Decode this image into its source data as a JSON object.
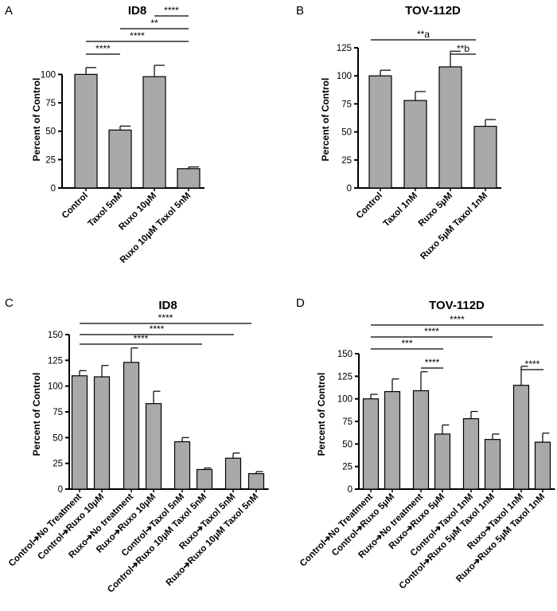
{
  "figure": {
    "panels": [
      {
        "id": "A",
        "letter": "A"
      },
      {
        "id": "B",
        "letter": "B"
      },
      {
        "id": "C",
        "letter": "C"
      },
      {
        "id": "D",
        "letter": "D"
      }
    ],
    "bar_color": "#a9a9a9",
    "ink_color": "#000000"
  },
  "chart_data": [
    {
      "panel": "A",
      "type": "bar",
      "title": "ID8",
      "ylabel": "Percent of Control",
      "xlabel": "",
      "ylim": [
        0,
        115
      ],
      "yticks": [
        0,
        25,
        50,
        75,
        100
      ],
      "categories": [
        "Control",
        "Taxol 5nM",
        "Ruxo 10μM",
        "Ruxo 10μM Taxol 5nM"
      ],
      "values": [
        100,
        51,
        98,
        17
      ],
      "errors": [
        6,
        3.5,
        10,
        1.5
      ],
      "significance": [
        {
          "from": 0,
          "to": 1,
          "label": "****"
        },
        {
          "from": 0,
          "to": 3,
          "label": "****"
        },
        {
          "from": 1,
          "to": 3,
          "label": "**"
        },
        {
          "from": 2,
          "to": 3,
          "label": "****"
        }
      ]
    },
    {
      "panel": "B",
      "type": "bar",
      "title": "TOV-112D",
      "ylabel": "Percent of Control",
      "xlabel": "",
      "ylim": [
        0,
        125
      ],
      "yticks": [
        0,
        25,
        50,
        75,
        100,
        125
      ],
      "categories": [
        "Control",
        "Taxol 1nM",
        "Ruxo 5μM",
        "Ruxo 5μM Taxol 1nM"
      ],
      "values": [
        100,
        78,
        108,
        55
      ],
      "errors": [
        5,
        8,
        14,
        6
      ],
      "significance": [
        {
          "from": 2,
          "to": 3,
          "label": "**b"
        },
        {
          "from": 0,
          "to": 3,
          "label": "**a"
        }
      ]
    },
    {
      "panel": "C",
      "type": "bar",
      "title": "ID8",
      "ylabel": "Percent of Control",
      "xlabel": "",
      "ylim": [
        0,
        150
      ],
      "yticks": [
        0,
        25,
        50,
        75,
        100,
        125,
        150
      ],
      "categories": [
        "Control➔No Treatment",
        "Control➔Ruxo 10μM",
        "Ruxo➔No treatment",
        "Ruxo➔Ruxo 10μM",
        "Control➔Taxol 5nM",
        "Control➔Ruxo 10μM Taxol 5nM",
        "Ruxo➔Taxol 5nM",
        "Ruxo➔Ruxo 10μM Taxol 5nM"
      ],
      "values": [
        110,
        109,
        123,
        83,
        46,
        19,
        30,
        15
      ],
      "errors": [
        5,
        11,
        14,
        12,
        4,
        1.5,
        5,
        2
      ],
      "significance": [
        {
          "from": 0,
          "to": 5,
          "label": "****"
        },
        {
          "from": 0,
          "to": 6,
          "label": "****"
        },
        {
          "from": 0,
          "to": 7,
          "label": "****"
        }
      ]
    },
    {
      "panel": "D",
      "type": "bar",
      "title": "TOV-112D",
      "ylabel": "Percent of Control",
      "xlabel": "",
      "ylim": [
        0,
        150
      ],
      "yticks": [
        0,
        25,
        50,
        75,
        100,
        125,
        150
      ],
      "categories": [
        "Control➔No Treatment",
        "Control➔Ruxo 5μM",
        "Ruxo➔No treatment",
        "Ruxo➔Ruxo 5μM",
        "Control➔Taxol 1nM",
        "Control➔Ruxo 5μM Taxol 1nM",
        "Ruxo➔Taxol 1nM",
        "Ruxo➔Ruxo 5μM Taxol 1nM"
      ],
      "values": [
        100,
        108,
        109,
        61,
        78,
        55,
        115,
        52
      ],
      "errors": [
        5,
        14,
        21,
        10,
        8,
        6,
        21,
        10
      ],
      "significance": [
        {
          "from": 2,
          "to": 3,
          "label": "****"
        },
        {
          "from": 6,
          "to": 7,
          "label": "****"
        },
        {
          "from": 0,
          "to": 3,
          "label": "***"
        },
        {
          "from": 0,
          "to": 5,
          "label": "****"
        },
        {
          "from": 0,
          "to": 7,
          "label": "****"
        }
      ]
    }
  ]
}
